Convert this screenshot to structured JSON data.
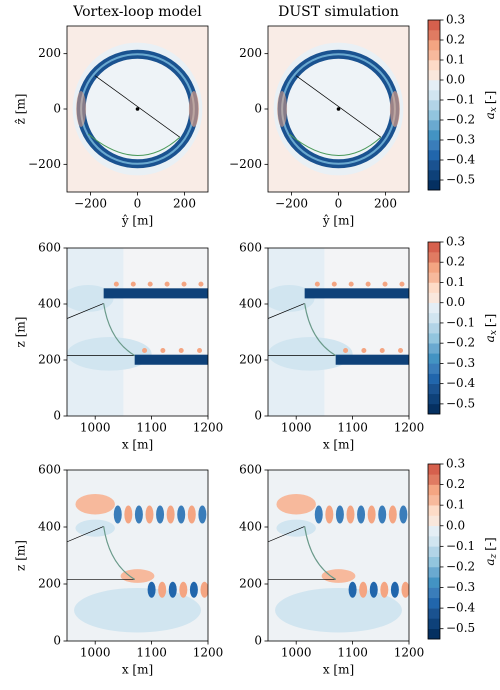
{
  "chart_data": [
    {
      "type": "contour",
      "title": "Vortex-loop model",
      "xlabel": "ŷ [m]",
      "ylabel": "ẑ [m]",
      "xlim": [
        -300,
        300
      ],
      "ylim": [
        -300,
        300
      ],
      "xticks": [
        {
          "value": -200,
          "label": "−200"
        },
        0,
        200
      ],
      "yticks": [
        {
          "value": -200,
          "label": "−200"
        },
        0,
        200
      ]
    },
    {
      "type": "contour",
      "title": "DUST simulation",
      "xlabel": "ŷ [m]",
      "xlim": [
        -300,
        300
      ],
      "ylim": [
        -300,
        300
      ],
      "xticks": [
        {
          "value": -200,
          "label": "−200"
        },
        0,
        200
      ],
      "yticks": [
        {
          "value": -200,
          "label": "−200"
        },
        0,
        200
      ]
    },
    {
      "type": "colorbar",
      "label": {
        "symbol": "a",
        "subscript": "x",
        "unit": "[-]"
      },
      "ylim": [
        -0.55,
        0.3
      ],
      "yticks": [
        0.3,
        0.2,
        0.1,
        {
          "value": 0,
          "label": "0.0"
        },
        {
          "value": -0.1,
          "label": "−0.1"
        },
        {
          "value": -0.2,
          "label": "−0.2"
        },
        {
          "value": -0.3,
          "label": "−0.3"
        },
        {
          "value": -0.4,
          "label": "−0.4"
        },
        {
          "value": -0.5,
          "label": "−0.5"
        }
      ],
      "colors": [
        "#053061",
        "#0e4179",
        "#1a5290",
        "#2166ac",
        "#3a7dba",
        "#4393c3",
        "#6aa9d0",
        "#92c5de",
        "#b2d4e7",
        "#d1e5f0",
        "#e4eef5",
        "#f9e7dc",
        "#fddbc7",
        "#f7b99c",
        "#f4a582",
        "#e07b62",
        "#d6604d"
      ]
    },
    {
      "type": "contour",
      "xlabel": "x [m]",
      "ylabel": "z [m]",
      "xlim": [
        950,
        1200
      ],
      "ylim": [
        0,
        600
      ],
      "xticks": [
        1000,
        1100,
        1200
      ],
      "yticks": [
        0,
        200,
        400,
        600
      ]
    },
    {
      "type": "contour",
      "xlabel": "x [m]",
      "xlim": [
        950,
        1200
      ],
      "ylim": [
        0,
        600
      ],
      "xticks": [
        1000,
        1100,
        1200
      ],
      "yticks": [
        0,
        200,
        400,
        600
      ]
    },
    {
      "type": "colorbar",
      "label": {
        "symbol": "a",
        "subscript": "x",
        "unit": "[-]"
      },
      "ylim": [
        -0.55,
        0.3
      ],
      "yticks": [
        0.3,
        0.2,
        0.1,
        {
          "value": 0,
          "label": "0.0"
        },
        {
          "value": -0.1,
          "label": "−0.1"
        },
        {
          "value": -0.2,
          "label": "−0.2"
        },
        {
          "value": -0.3,
          "label": "−0.3"
        },
        {
          "value": -0.4,
          "label": "−0.4"
        },
        {
          "value": -0.5,
          "label": "−0.5"
        }
      ],
      "colors": [
        "#053061",
        "#0e4179",
        "#1a5290",
        "#2166ac",
        "#3a7dba",
        "#4393c3",
        "#6aa9d0",
        "#92c5de",
        "#b2d4e7",
        "#d1e5f0",
        "#e4eef5",
        "#f9e7dc",
        "#fddbc7",
        "#f7b99c",
        "#f4a582",
        "#e07b62",
        "#d6604d"
      ]
    },
    {
      "type": "contour",
      "xlabel": "x [m]",
      "ylabel": "z [m]",
      "xlim": [
        950,
        1200
      ],
      "ylim": [
        0,
        600
      ],
      "xticks": [
        1000,
        1100,
        1200
      ],
      "yticks": [
        0,
        200,
        400,
        600
      ]
    },
    {
      "type": "contour",
      "xlabel": "x [m]",
      "xlim": [
        950,
        1200
      ],
      "ylim": [
        0,
        600
      ],
      "xticks": [
        1000,
        1100,
        1200
      ],
      "yticks": [
        0,
        200,
        400,
        600
      ]
    },
    {
      "type": "colorbar",
      "label": {
        "symbol": "a",
        "subscript": "z",
        "unit": "[-]"
      },
      "ylim": [
        -0.55,
        0.3
      ],
      "yticks": [
        0.3,
        0.2,
        0.1,
        {
          "value": 0,
          "label": "0.0"
        },
        {
          "value": -0.1,
          "label": "−0.1"
        },
        {
          "value": -0.2,
          "label": "−0.2"
        },
        {
          "value": -0.3,
          "label": "−0.3"
        },
        {
          "value": -0.4,
          "label": "−0.4"
        },
        {
          "value": -0.5,
          "label": "−0.5"
        }
      ],
      "colors": [
        "#053061",
        "#0e4179",
        "#1a5290",
        "#2166ac",
        "#3a7dba",
        "#4393c3",
        "#6aa9d0",
        "#92c5de",
        "#b2d4e7",
        "#d1e5f0",
        "#e4eef5",
        "#f9e7dc",
        "#fddbc7",
        "#f7b99c",
        "#f4a582",
        "#e07b62",
        "#d6604d"
      ]
    }
  ]
}
